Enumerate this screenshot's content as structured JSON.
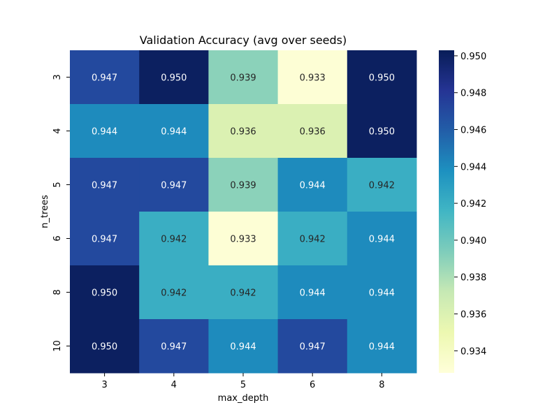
{
  "chart_data": {
    "type": "heatmap",
    "title": "Validation Accuracy (avg over seeds)",
    "xlabel": "max_depth",
    "ylabel": "n_trees",
    "x_categories": [
      "3",
      "4",
      "5",
      "6",
      "8"
    ],
    "y_categories": [
      "3",
      "4",
      "5",
      "6",
      "8",
      "10"
    ],
    "values": [
      [
        0.947,
        0.95,
        0.939,
        0.933,
        0.95
      ],
      [
        0.944,
        0.944,
        0.936,
        0.936,
        0.95
      ],
      [
        0.947,
        0.947,
        0.939,
        0.944,
        0.942
      ],
      [
        0.947,
        0.942,
        0.933,
        0.942,
        0.944
      ],
      [
        0.95,
        0.942,
        0.942,
        0.944,
        0.944
      ],
      [
        0.95,
        0.947,
        0.944,
        0.947,
        0.944
      ]
    ],
    "value_format": "3 decimals",
    "colormap": "YlGnBu",
    "vmin": 0.9328,
    "vmax": 0.9503,
    "colorbar_ticks": [
      "0.934",
      "0.936",
      "0.938",
      "0.940",
      "0.942",
      "0.944",
      "0.946",
      "0.948",
      "0.950"
    ],
    "colorbar_tick_values": [
      0.934,
      0.936,
      0.938,
      0.94,
      0.942,
      0.944,
      0.946,
      0.948,
      0.95
    ],
    "colorbar_position": "right",
    "grid": false
  }
}
